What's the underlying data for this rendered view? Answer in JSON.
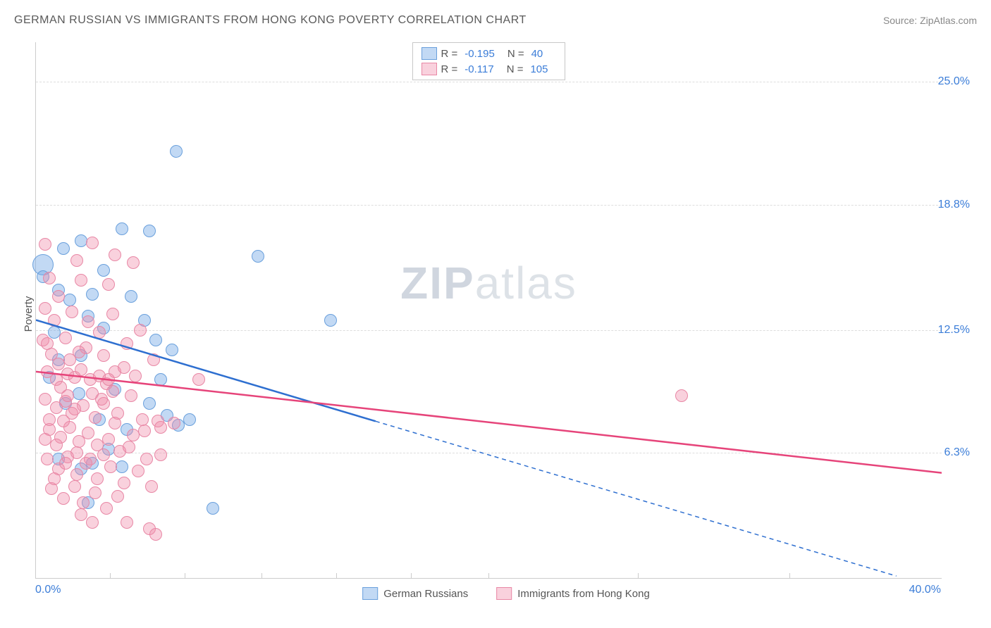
{
  "header": {
    "title": "GERMAN RUSSIAN VS IMMIGRANTS FROM HONG KONG POVERTY CORRELATION CHART",
    "source": "Source: ZipAtlas.com"
  },
  "watermark": {
    "bold": "ZIP",
    "light": "atlas"
  },
  "chart": {
    "type": "scatter",
    "y_axis_label": "Poverty",
    "xlim": [
      0,
      40
    ],
    "ylim": [
      0,
      27
    ],
    "x_ticks": [
      {
        "pos": 0.0,
        "label": "0.0%"
      },
      {
        "pos": 40.0,
        "label": "40.0%"
      }
    ],
    "x_minor_ticks": [
      3.3,
      6.6,
      10,
      13.3,
      16.6,
      20,
      26.6,
      33.3
    ],
    "y_ticks": [
      {
        "pos": 6.3,
        "label": "6.3%"
      },
      {
        "pos": 12.5,
        "label": "12.5%"
      },
      {
        "pos": 18.8,
        "label": "18.8%"
      },
      {
        "pos": 25.0,
        "label": "25.0%"
      }
    ],
    "grid_color": "#dddddd",
    "background_color": "#ffffff",
    "axis_color": "#cccccc",
    "tick_label_color": "#3b7dd8",
    "axis_label_color": "#555555",
    "series": [
      {
        "name": "German Russians",
        "fill_color": "rgba(120,170,230,0.45)",
        "stroke_color": "#6aa0dc",
        "line_color": "#2e6fd0",
        "marker_radius": 8,
        "R": "-0.195",
        "N": "40",
        "trend": {
          "x1": 0,
          "y1": 13.0,
          "x2": 15.0,
          "y2": 7.9,
          "x3": 38.0,
          "y3": 0.1
        },
        "points": [
          {
            "x": 0.3,
            "y": 15.8,
            "r": 14
          },
          {
            "x": 0.3,
            "y": 15.2
          },
          {
            "x": 1.2,
            "y": 16.6
          },
          {
            "x": 2.0,
            "y": 17.0
          },
          {
            "x": 1.5,
            "y": 14.0
          },
          {
            "x": 2.5,
            "y": 14.3
          },
          {
            "x": 0.8,
            "y": 12.4
          },
          {
            "x": 1.0,
            "y": 11.0
          },
          {
            "x": 2.0,
            "y": 11.2
          },
          {
            "x": 3.0,
            "y": 12.6
          },
          {
            "x": 3.8,
            "y": 17.6
          },
          {
            "x": 5.0,
            "y": 17.5
          },
          {
            "x": 4.2,
            "y": 14.2
          },
          {
            "x": 4.8,
            "y": 13.0
          },
          {
            "x": 5.5,
            "y": 10.0
          },
          {
            "x": 3.5,
            "y": 9.5
          },
          {
            "x": 2.8,
            "y": 8.0
          },
          {
            "x": 4.0,
            "y": 7.5
          },
          {
            "x": 1.0,
            "y": 6.0
          },
          {
            "x": 2.0,
            "y": 5.5
          },
          {
            "x": 3.2,
            "y": 6.5
          },
          {
            "x": 5.8,
            "y": 8.2
          },
          {
            "x": 6.3,
            "y": 7.7
          },
          {
            "x": 6.0,
            "y": 11.5
          },
          {
            "x": 6.8,
            "y": 8.0
          },
          {
            "x": 5.3,
            "y": 12.0
          },
          {
            "x": 6.2,
            "y": 21.5
          },
          {
            "x": 9.8,
            "y": 16.2
          },
          {
            "x": 13.0,
            "y": 13.0
          },
          {
            "x": 7.8,
            "y": 3.5
          },
          {
            "x": 2.3,
            "y": 3.8
          },
          {
            "x": 2.5,
            "y": 5.8
          },
          {
            "x": 3.8,
            "y": 5.6
          },
          {
            "x": 1.3,
            "y": 8.8
          },
          {
            "x": 0.6,
            "y": 10.1
          },
          {
            "x": 1.9,
            "y": 9.3
          },
          {
            "x": 3.0,
            "y": 15.5
          },
          {
            "x": 1.0,
            "y": 14.5
          },
          {
            "x": 2.3,
            "y": 13.2
          },
          {
            "x": 5.0,
            "y": 8.8
          }
        ]
      },
      {
        "name": "Immigrants from Hong Kong",
        "fill_color": "rgba(240,140,170,0.40)",
        "stroke_color": "#e887a5",
        "line_color": "#e6447a",
        "marker_radius": 8,
        "R": "-0.117",
        "N": "105",
        "trend": {
          "x1": 0,
          "y1": 10.4,
          "x2": 40.0,
          "y2": 5.3
        },
        "points": [
          {
            "x": 0.4,
            "y": 16.8
          },
          {
            "x": 0.6,
            "y": 15.1
          },
          {
            "x": 1.0,
            "y": 14.2
          },
          {
            "x": 0.4,
            "y": 13.6
          },
          {
            "x": 1.8,
            "y": 16.0
          },
          {
            "x": 2.5,
            "y": 16.9
          },
          {
            "x": 2.0,
            "y": 15.0
          },
          {
            "x": 3.2,
            "y": 14.8
          },
          {
            "x": 3.5,
            "y": 16.3
          },
          {
            "x": 4.3,
            "y": 15.9
          },
          {
            "x": 0.3,
            "y": 12.0
          },
          {
            "x": 0.7,
            "y": 11.3
          },
          {
            "x": 1.3,
            "y": 12.1
          },
          {
            "x": 1.5,
            "y": 11.0
          },
          {
            "x": 2.2,
            "y": 11.6
          },
          {
            "x": 2.8,
            "y": 12.4
          },
          {
            "x": 0.5,
            "y": 10.4
          },
          {
            "x": 0.9,
            "y": 10.0
          },
          {
            "x": 1.4,
            "y": 10.3
          },
          {
            "x": 1.1,
            "y": 9.6
          },
          {
            "x": 1.7,
            "y": 10.1
          },
          {
            "x": 2.0,
            "y": 10.5
          },
          {
            "x": 2.4,
            "y": 10.0
          },
          {
            "x": 2.8,
            "y": 10.2
          },
          {
            "x": 3.1,
            "y": 9.8
          },
          {
            "x": 3.5,
            "y": 10.4
          },
          {
            "x": 0.4,
            "y": 9.0
          },
          {
            "x": 0.9,
            "y": 8.6
          },
          {
            "x": 1.3,
            "y": 8.9
          },
          {
            "x": 1.6,
            "y": 8.3
          },
          {
            "x": 2.1,
            "y": 8.7
          },
          {
            "x": 2.6,
            "y": 8.1
          },
          {
            "x": 3.0,
            "y": 8.8
          },
          {
            "x": 3.6,
            "y": 8.3
          },
          {
            "x": 4.2,
            "y": 9.2
          },
          {
            "x": 4.7,
            "y": 8.0
          },
          {
            "x": 5.4,
            "y": 7.9
          },
          {
            "x": 7.2,
            "y": 10.0
          },
          {
            "x": 0.6,
            "y": 7.5
          },
          {
            "x": 1.1,
            "y": 7.1
          },
          {
            "x": 1.5,
            "y": 7.6
          },
          {
            "x": 1.9,
            "y": 6.9
          },
          {
            "x": 2.3,
            "y": 7.3
          },
          {
            "x": 2.7,
            "y": 6.7
          },
          {
            "x": 3.2,
            "y": 7.0
          },
          {
            "x": 3.7,
            "y": 6.4
          },
          {
            "x": 4.3,
            "y": 7.2
          },
          {
            "x": 4.9,
            "y": 6.0
          },
          {
            "x": 5.5,
            "y": 7.6
          },
          {
            "x": 0.5,
            "y": 6.0
          },
          {
            "x": 1.0,
            "y": 5.5
          },
          {
            "x": 1.4,
            "y": 6.1
          },
          {
            "x": 1.8,
            "y": 5.2
          },
          {
            "x": 2.2,
            "y": 5.8
          },
          {
            "x": 2.7,
            "y": 5.0
          },
          {
            "x": 3.3,
            "y": 5.6
          },
          {
            "x": 3.9,
            "y": 4.8
          },
          {
            "x": 4.5,
            "y": 5.4
          },
          {
            "x": 5.1,
            "y": 4.6
          },
          {
            "x": 0.7,
            "y": 4.5
          },
          {
            "x": 1.2,
            "y": 4.0
          },
          {
            "x": 1.7,
            "y": 4.6
          },
          {
            "x": 2.1,
            "y": 3.8
          },
          {
            "x": 2.6,
            "y": 4.3
          },
          {
            "x": 3.1,
            "y": 3.5
          },
          {
            "x": 3.6,
            "y": 4.1
          },
          {
            "x": 4.0,
            "y": 2.8
          },
          {
            "x": 5.0,
            "y": 2.5
          },
          {
            "x": 5.3,
            "y": 2.2
          },
          {
            "x": 0.8,
            "y": 13.0
          },
          {
            "x": 1.6,
            "y": 13.4
          },
          {
            "x": 2.3,
            "y": 12.9
          },
          {
            "x": 3.0,
            "y": 11.2
          },
          {
            "x": 3.4,
            "y": 13.3
          },
          {
            "x": 4.0,
            "y": 11.8
          },
          {
            "x": 4.6,
            "y": 12.5
          },
          {
            "x": 5.2,
            "y": 11.0
          },
          {
            "x": 0.5,
            "y": 11.8
          },
          {
            "x": 1.0,
            "y": 10.8
          },
          {
            "x": 1.9,
            "y": 11.4
          },
          {
            "x": 2.5,
            "y": 9.3
          },
          {
            "x": 3.2,
            "y": 10.0
          },
          {
            "x": 0.9,
            "y": 6.7
          },
          {
            "x": 1.4,
            "y": 9.2
          },
          {
            "x": 28.5,
            "y": 9.2
          },
          {
            "x": 0.6,
            "y": 8.0
          },
          {
            "x": 1.2,
            "y": 7.9
          },
          {
            "x": 1.7,
            "y": 8.5
          },
          {
            "x": 2.9,
            "y": 9.0
          },
          {
            "x": 3.4,
            "y": 9.4
          },
          {
            "x": 3.9,
            "y": 10.6
          },
          {
            "x": 4.4,
            "y": 10.2
          },
          {
            "x": 0.4,
            "y": 7.0
          },
          {
            "x": 0.8,
            "y": 5.0
          },
          {
            "x": 1.3,
            "y": 5.8
          },
          {
            "x": 1.8,
            "y": 6.3
          },
          {
            "x": 2.4,
            "y": 6.0
          },
          {
            "x": 3.0,
            "y": 6.2
          },
          {
            "x": 3.5,
            "y": 7.8
          },
          {
            "x": 4.1,
            "y": 6.6
          },
          {
            "x": 4.8,
            "y": 7.4
          },
          {
            "x": 5.5,
            "y": 6.2
          },
          {
            "x": 6.1,
            "y": 7.8
          },
          {
            "x": 2.0,
            "y": 3.2
          },
          {
            "x": 2.5,
            "y": 2.8
          }
        ]
      }
    ],
    "legend_bottom": [
      {
        "swatch_fill": "rgba(120,170,230,0.45)",
        "swatch_stroke": "#6aa0dc",
        "label": "German Russians"
      },
      {
        "swatch_fill": "rgba(240,140,170,0.40)",
        "swatch_stroke": "#e887a5",
        "label": "Immigrants from Hong Kong"
      }
    ]
  }
}
